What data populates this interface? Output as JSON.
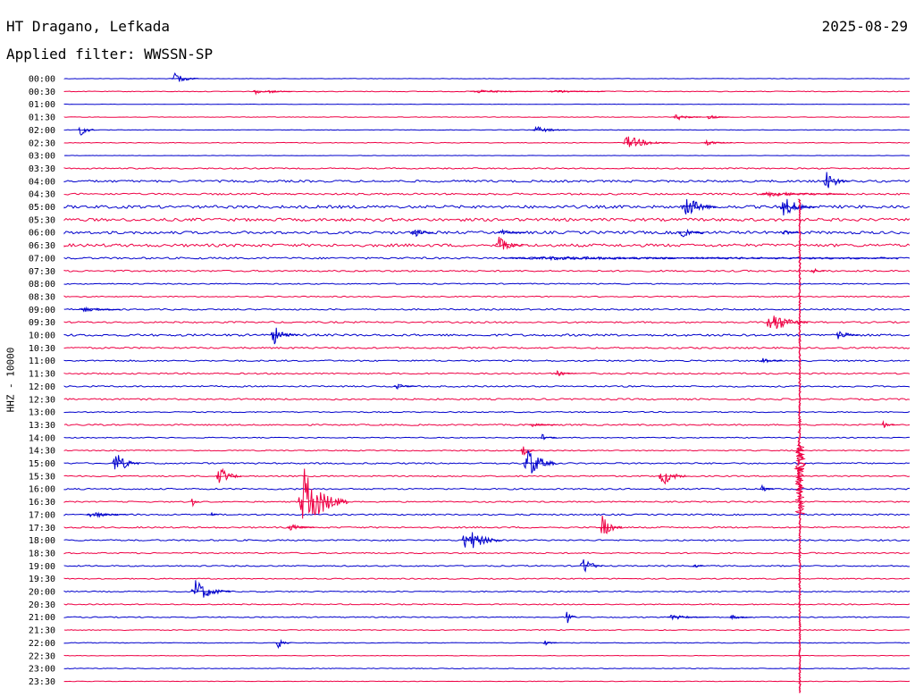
{
  "header": {
    "station": "HT Dragano, Lefkada",
    "date": "2025-08-29",
    "filter": "Applied filter: WWSSN-SP"
  },
  "chart_data": {
    "type": "line",
    "chart_kind": "helicorder",
    "channel_label": "HHZ - 10000",
    "x_unit": "minutes",
    "x_range": [
      0,
      30
    ],
    "row_labels": [
      "00:00",
      "00:30",
      "01:00",
      "01:30",
      "02:00",
      "02:30",
      "03:00",
      "03:30",
      "04:00",
      "04:30",
      "05:00",
      "05:30",
      "06:00",
      "06:30",
      "07:00",
      "07:30",
      "08:00",
      "08:30",
      "09:00",
      "09:30",
      "10:00",
      "10:30",
      "11:00",
      "11:30",
      "12:00",
      "12:30",
      "13:00",
      "13:30",
      "14:00",
      "14:30",
      "15:00",
      "15:30",
      "16:00",
      "16:30",
      "17:00",
      "17:30",
      "18:00",
      "18:30",
      "19:00",
      "19:30",
      "20:00",
      "20:30",
      "21:00",
      "21:30",
      "22:00",
      "22:30",
      "23:00",
      "23:30"
    ],
    "trace_colors": [
      "#0000cc",
      "#ee0044"
    ],
    "noise_levels": [
      0.2,
      0.4,
      0.2,
      0.3,
      0.3,
      0.4,
      0.2,
      0.7,
      1.2,
      1.0,
      1.6,
      1.6,
      1.5,
      1.6,
      1.0,
      0.9,
      0.6,
      0.6,
      0.8,
      0.9,
      1.2,
      0.9,
      0.8,
      0.8,
      0.8,
      0.9,
      0.6,
      0.8,
      0.5,
      0.6,
      0.8,
      0.7,
      0.8,
      0.7,
      0.8,
      0.8,
      0.8,
      0.7,
      0.7,
      0.6,
      0.6,
      0.6,
      0.6,
      0.5,
      0.4,
      0.3,
      0.4,
      0.3
    ],
    "events": [
      {
        "row": 0,
        "minute": 3.8,
        "amp": 6,
        "dur": 1.0
      },
      {
        "row": 1,
        "minute": 6.7,
        "amp": 3,
        "dur": 0.8
      },
      {
        "row": 1,
        "minute": 7.2,
        "amp": 2,
        "dur": 0.9
      },
      {
        "row": 1,
        "minute": 14.4,
        "amp": 2,
        "dur": 2.5
      },
      {
        "row": 1,
        "minute": 17.2,
        "amp": 2,
        "dur": 2.0
      },
      {
        "row": 3,
        "minute": 21.6,
        "amp": 4,
        "dur": 1.0
      },
      {
        "row": 3,
        "minute": 22.8,
        "amp": 3,
        "dur": 0.8
      },
      {
        "row": 4,
        "minute": 0.5,
        "amp": 8,
        "dur": 0.6
      },
      {
        "row": 4,
        "minute": 16.6,
        "amp": 4,
        "dur": 1.3
      },
      {
        "row": 5,
        "minute": 19.8,
        "amp": 8,
        "dur": 1.7
      },
      {
        "row": 5,
        "minute": 22.7,
        "amp": 3,
        "dur": 1.0
      },
      {
        "row": 8,
        "minute": 26.9,
        "amp": 13,
        "dur": 1.0
      },
      {
        "row": 9,
        "minute": 24.7,
        "amp": 3,
        "dur": 3.0
      },
      {
        "row": 10,
        "minute": 21.9,
        "amp": 14,
        "dur": 1.3
      },
      {
        "row": 10,
        "minute": 25.4,
        "amp": 12,
        "dur": 1.3
      },
      {
        "row": 12,
        "minute": 12.3,
        "amp": 6,
        "dur": 0.8
      },
      {
        "row": 12,
        "minute": 15.4,
        "amp": 3,
        "dur": 1.0
      },
      {
        "row": 12,
        "minute": 21.8,
        "amp": 6,
        "dur": 0.9
      },
      {
        "row": 12,
        "minute": 25.5,
        "amp": 4,
        "dur": 0.6
      },
      {
        "row": 13,
        "minute": 15.3,
        "amp": 10,
        "dur": 1.0
      },
      {
        "row": 14,
        "minute": 15.6,
        "amp": 2,
        "dur": 14.0
      },
      {
        "row": 15,
        "minute": 26.5,
        "amp": 4,
        "dur": 0.5
      },
      {
        "row": 18,
        "minute": 0.5,
        "amp": 3,
        "dur": 1.5
      },
      {
        "row": 19,
        "minute": 24.9,
        "amp": 14,
        "dur": 1.5
      },
      {
        "row": 20,
        "minute": 7.3,
        "amp": 12,
        "dur": 1.0
      },
      {
        "row": 20,
        "minute": 27.4,
        "amp": 7,
        "dur": 0.8
      },
      {
        "row": 22,
        "minute": 24.7,
        "amp": 3,
        "dur": 0.8
      },
      {
        "row": 23,
        "minute": 17.4,
        "amp": 3,
        "dur": 0.8
      },
      {
        "row": 24,
        "minute": 11.7,
        "amp": 4,
        "dur": 0.8
      },
      {
        "row": 27,
        "minute": 29.0,
        "amp": 4,
        "dur": 0.5
      },
      {
        "row": 27,
        "minute": 16.5,
        "amp": 2,
        "dur": 1.0
      },
      {
        "row": 28,
        "minute": 16.9,
        "amp": 5,
        "dur": 0.6
      },
      {
        "row": 29,
        "minute": 16.2,
        "amp": 10,
        "dur": 0.5
      },
      {
        "row": 30,
        "minute": 1.7,
        "amp": 14,
        "dur": 1.0
      },
      {
        "row": 30,
        "minute": 16.3,
        "amp": 20,
        "dur": 1.2
      },
      {
        "row": 31,
        "minute": 5.4,
        "amp": 12,
        "dur": 0.9
      },
      {
        "row": 31,
        "minute": 21.1,
        "amp": 12,
        "dur": 1.0
      },
      {
        "row": 32,
        "minute": 24.7,
        "amp": 4,
        "dur": 0.5
      },
      {
        "row": 33,
        "minute": 4.5,
        "amp": 6,
        "dur": 0.3
      },
      {
        "row": 33,
        "minute": 8.3,
        "amp": 38,
        "dur": 1.8
      },
      {
        "row": 34,
        "minute": 0.8,
        "amp": 4,
        "dur": 1.5
      },
      {
        "row": 34,
        "minute": 5.2,
        "amp": 3,
        "dur": 0.3
      },
      {
        "row": 35,
        "minute": 7.9,
        "amp": 4,
        "dur": 1.0
      },
      {
        "row": 35,
        "minute": 19.0,
        "amp": 14,
        "dur": 0.8
      },
      {
        "row": 36,
        "minute": 14.1,
        "amp": 15,
        "dur": 1.5
      },
      {
        "row": 38,
        "minute": 18.3,
        "amp": 12,
        "dur": 0.8
      },
      {
        "row": 38,
        "minute": 22.3,
        "amp": 3,
        "dur": 0.4
      },
      {
        "row": 40,
        "minute": 4.5,
        "amp": 14,
        "dur": 1.4
      },
      {
        "row": 42,
        "minute": 17.8,
        "amp": 10,
        "dur": 0.4
      },
      {
        "row": 42,
        "minute": 21.4,
        "amp": 3,
        "dur": 1.5
      },
      {
        "row": 42,
        "minute": 23.6,
        "amp": 3,
        "dur": 0.8
      },
      {
        "row": 44,
        "minute": 7.5,
        "amp": 7,
        "dur": 0.6
      },
      {
        "row": 44,
        "minute": 17.0,
        "amp": 3,
        "dur": 0.5
      }
    ],
    "long_event": {
      "minute": 26.1,
      "from_row": 10,
      "to_row": 47,
      "peak_row": 30,
      "amp": 55
    }
  }
}
